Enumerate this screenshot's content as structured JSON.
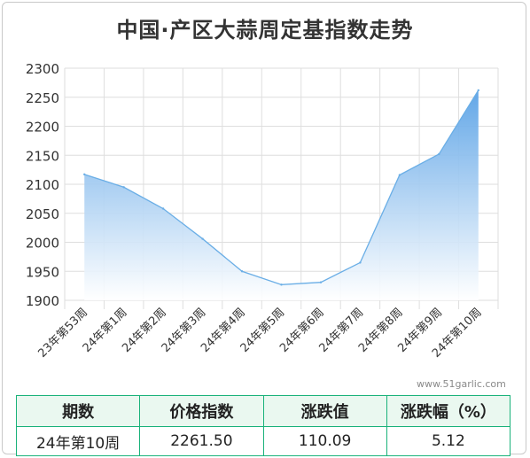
{
  "chart_data": {
    "type": "area",
    "title": "中国·产区大蒜周定基指数走势",
    "categories": [
      "23年第53周",
      "24年第1周",
      "24年第2周",
      "24年第3周",
      "24年第4周",
      "24年第5周",
      "24年第6周",
      "24年第7周",
      "24年第8周",
      "24年第9周",
      "24年第10周"
    ],
    "values": [
      2117,
      2095,
      2058,
      2006,
      1950,
      1927,
      1931,
      1965,
      2116,
      2152,
      2262
    ],
    "ylim": [
      1900,
      2300
    ],
    "yticks": [
      1900,
      1950,
      2000,
      2050,
      2100,
      2150,
      2200,
      2250,
      2300
    ],
    "grid": true,
    "colors": {
      "line": "#6aaee6",
      "fill_top": "#5aa2e6",
      "fill_bottom": "#ffffff"
    }
  },
  "watermark": "www.51garlic.com",
  "table": {
    "headers": [
      "期数",
      "价格指数",
      "涨跌值",
      "涨跌幅（%）"
    ],
    "row": [
      "24年第10周",
      "2261.50",
      "110.09",
      "5.12"
    ]
  }
}
